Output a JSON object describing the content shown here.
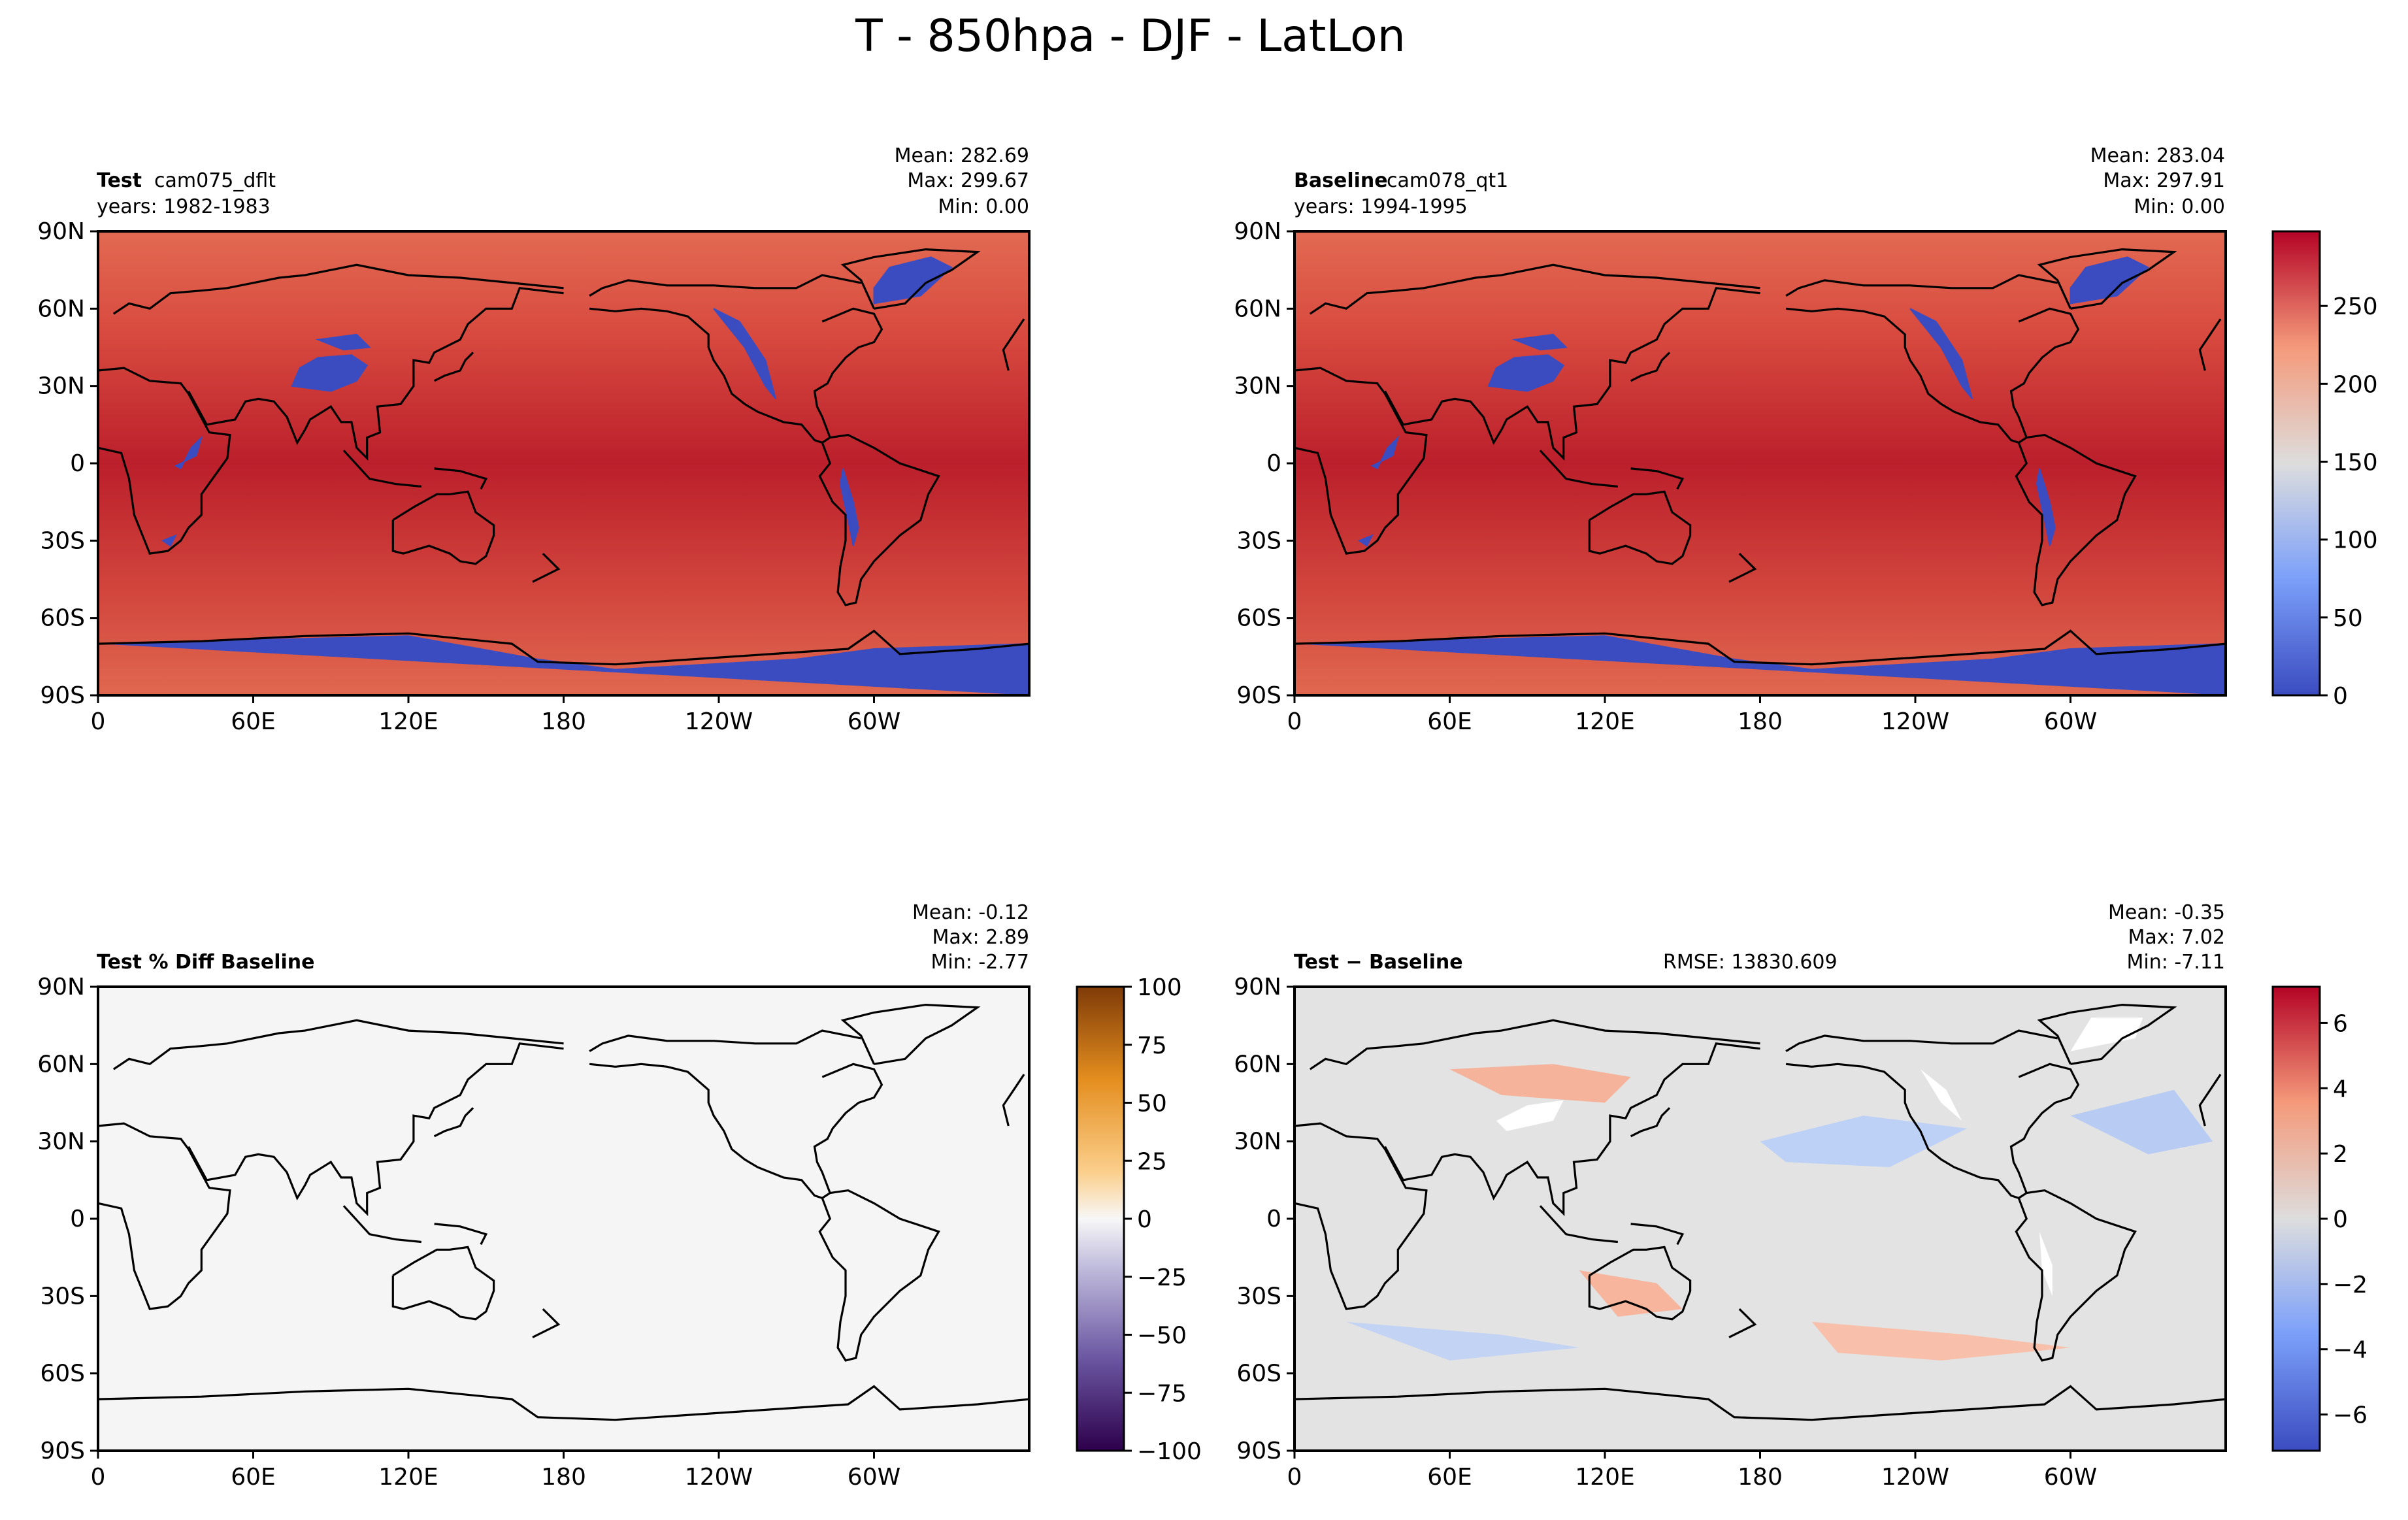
{
  "figure": {
    "title": "T - 850hpa - DJF - LatLon"
  },
  "colors": {
    "warm": "#cf3a38",
    "warm_deep": "#bb1f2b",
    "warm_light": "#e5694f",
    "cold": "#3b4cc0",
    "neutral": "#f5f5f5",
    "diff_bg": "#e3e3e3",
    "frame": "#000000",
    "coast": "#000000"
  },
  "axes_common": {
    "xticks": [
      "0",
      "60E",
      "120E",
      "180",
      "120W",
      "60W"
    ],
    "yticks": [
      "90N",
      "60N",
      "30N",
      "0",
      "30S",
      "60S",
      "90S"
    ]
  },
  "chart_data": [
    {
      "type": "heatmap",
      "panel": "test",
      "variable": "T",
      "level": "850hpa",
      "season": "DJF",
      "label_bold": "Test",
      "label_sep": ":",
      "label_rest": " cam075_dflt",
      "years": "years: 1982-1983",
      "stats": [
        "Mean: 282.69",
        "Max: 299.67",
        "Min:  0.00"
      ],
      "xlim": [
        0,
        360
      ],
      "ylim": [
        -90,
        90
      ],
      "cmap": "coolwarm",
      "vmin": 0,
      "vmax": 299.67
    },
    {
      "type": "heatmap",
      "panel": "baseline",
      "label_bold": "Baseline",
      "label_sep": ":",
      "label_rest": " cam078_qt1",
      "years": "years: 1994-1995",
      "stats": [
        "Mean: 283.04",
        "Max: 297.91",
        "Min:  0.00"
      ],
      "xlim": [
        0,
        360
      ],
      "ylim": [
        -90,
        90
      ],
      "cmap": "coolwarm",
      "vmin": 0,
      "vmax": 297.91,
      "colorbar": {
        "ticks": [
          "0",
          "50",
          "100",
          "150",
          "200",
          "250"
        ],
        "tick_values": [
          0,
          50,
          100,
          150,
          200,
          250
        ],
        "vmin": 0,
        "vmax": 297.91
      }
    },
    {
      "type": "heatmap",
      "panel": "pct_diff",
      "label_bold": "Test % Diff Baseline",
      "stats": [
        "Mean: -0.12",
        "Max:  2.89",
        "Min: -2.77"
      ],
      "xlim": [
        0,
        360
      ],
      "ylim": [
        -90,
        90
      ],
      "cmap": "PuOr_r",
      "vmin": -100,
      "vmax": 100,
      "colorbar": {
        "ticks": [
          "100",
          "75",
          "50",
          "25",
          "0",
          "−25",
          "−50",
          "−75",
          "−100"
        ],
        "tick_values": [
          100,
          75,
          50,
          25,
          0,
          -25,
          -50,
          -75,
          -100
        ],
        "vmin": -100,
        "vmax": 100
      }
    },
    {
      "type": "heatmap",
      "panel": "diff",
      "label_bold": "Test − Baseline",
      "rmse": "RMSE: 13830.609",
      "stats": [
        "Mean: -0.35",
        "Max:  7.02",
        "Min: -7.11"
      ],
      "xlim": [
        0,
        360
      ],
      "ylim": [
        -90,
        90
      ],
      "cmap": "coolwarm",
      "vmin": -7.11,
      "vmax": 7.11,
      "colorbar": {
        "ticks": [
          "6",
          "4",
          "2",
          "0",
          "−2",
          "−4",
          "−6"
        ],
        "tick_values": [
          6,
          4,
          2,
          0,
          -2,
          -4,
          -6
        ],
        "vmin": -7.11,
        "vmax": 7.11
      }
    }
  ]
}
